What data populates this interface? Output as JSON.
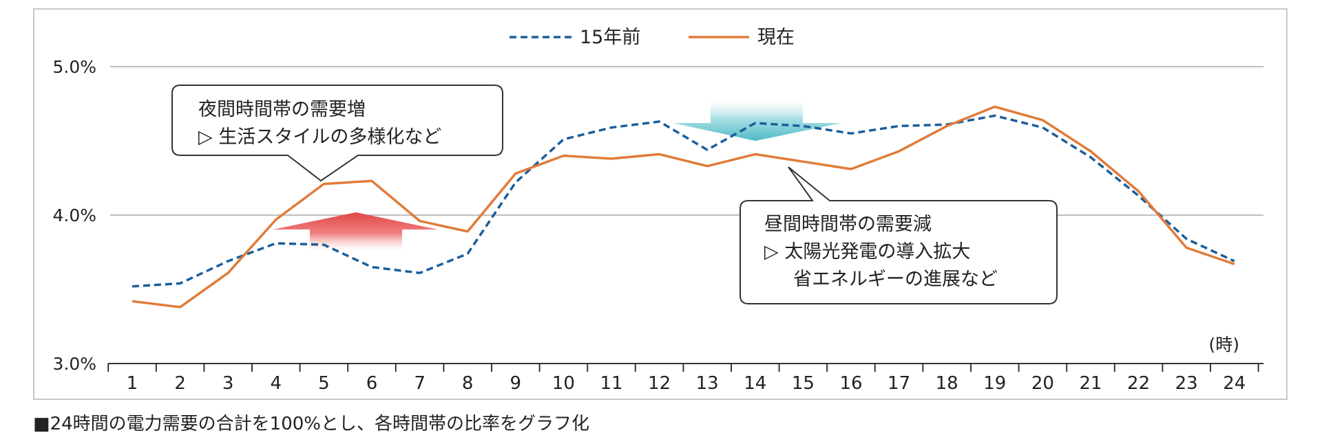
{
  "chart_data": {
    "type": "line",
    "categories": [
      "1",
      "2",
      "3",
      "4",
      "5",
      "6",
      "7",
      "8",
      "9",
      "10",
      "11",
      "12",
      "13",
      "14",
      "15",
      "16",
      "17",
      "18",
      "19",
      "20",
      "21",
      "22",
      "23",
      "24"
    ],
    "series": [
      {
        "name": "15年前",
        "color": "#1a5e9a",
        "style": "dashed",
        "values": [
          3.52,
          3.54,
          3.69,
          3.81,
          3.8,
          3.65,
          3.61,
          3.74,
          4.22,
          4.51,
          4.59,
          4.63,
          4.44,
          4.62,
          4.6,
          4.55,
          4.6,
          4.61,
          4.67,
          4.59,
          4.39,
          4.13,
          3.84,
          3.69
        ]
      },
      {
        "name": "現在",
        "color": "#e07b39",
        "style": "solid",
        "values": [
          3.42,
          3.38,
          3.61,
          3.97,
          4.21,
          4.23,
          3.96,
          3.89,
          4.28,
          4.4,
          4.38,
          4.41,
          4.33,
          4.41,
          4.36,
          4.31,
          4.43,
          4.6,
          4.73,
          4.64,
          4.43,
          4.16,
          3.78,
          3.67
        ]
      }
    ],
    "ylim": [
      3.0,
      5.0
    ],
    "yticks": [
      "3.0%",
      "4.0%",
      "5.0%"
    ],
    "xlabel": "(時)",
    "legend_position": "top-center",
    "annotations": [
      {
        "title": "夜間時間帯の需要増",
        "lines": [
          "▷ 生活スタイルの多様化など"
        ],
        "arrow": "up",
        "arrow_color": "#e05050"
      },
      {
        "title": "昼間時間帯の需要減",
        "lines": [
          "▷ 太陽光発電の導入拡大",
          "省エネルギーの進展など"
        ],
        "arrow": "down",
        "arrow_color": "#5bc2cc"
      }
    ]
  },
  "footnote": "■24時間の電力需要の合計を100%とし、各時間帯の比率をグラフ化"
}
